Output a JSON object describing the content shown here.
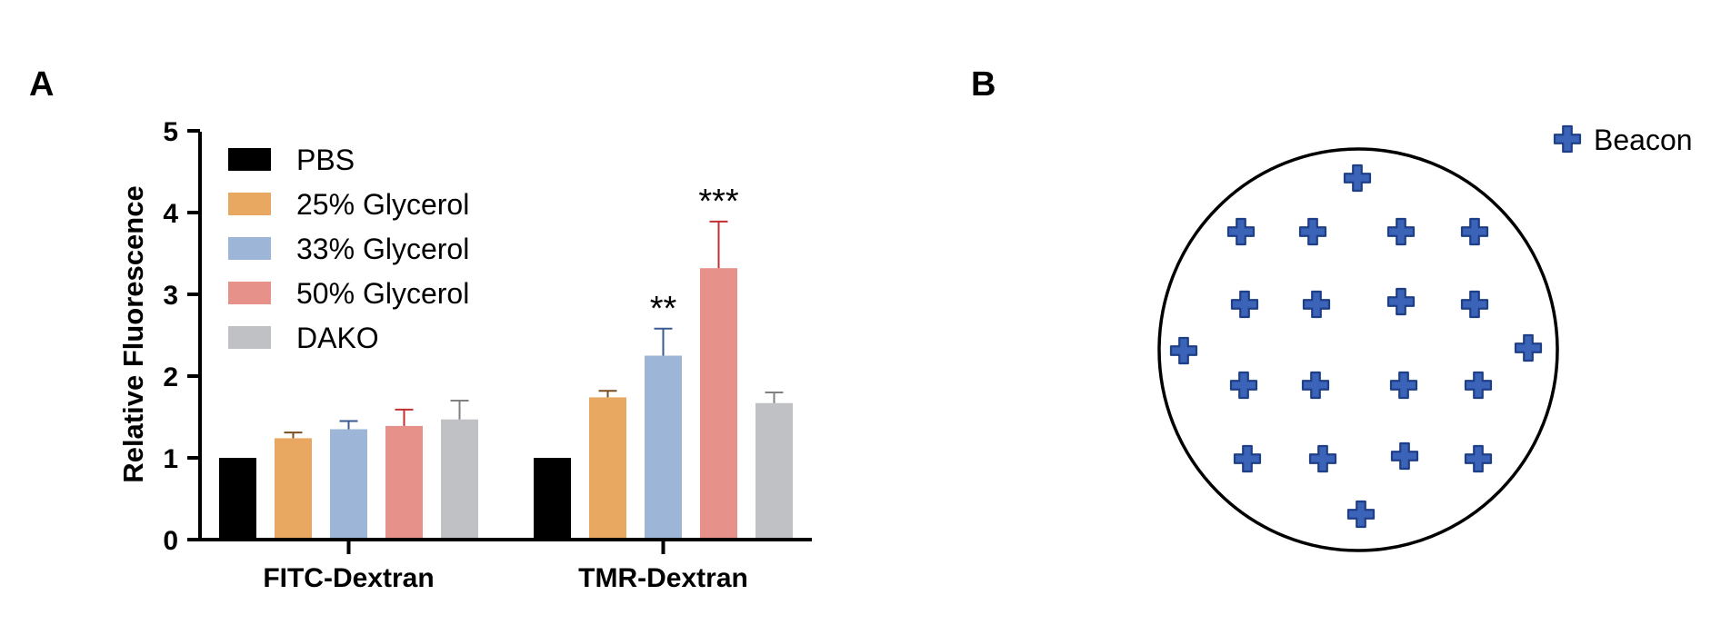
{
  "panels": {
    "a_label": "A",
    "b_label": "B"
  },
  "chart_data": {
    "type": "bar",
    "title": "",
    "xlabel": "",
    "ylabel": "Relative Fluorescence",
    "ylim": [
      0,
      5
    ],
    "yticks": [
      "0",
      "1",
      "2",
      "3",
      "4",
      "5"
    ],
    "categories": [
      "FITC-Dextran",
      "TMR-Dextran"
    ],
    "legend_position": "top-left",
    "series": [
      {
        "name": "PBS",
        "color": "#000000",
        "values": [
          1.0,
          1.0
        ],
        "errors": [
          0,
          0
        ]
      },
      {
        "name": "25% Glycerol",
        "color": "#E8A862",
        "values": [
          1.24,
          1.74
        ],
        "errors": [
          0.07,
          0.08
        ]
      },
      {
        "name": "33% Glycerol",
        "color": "#9DB5D6",
        "values": [
          1.35,
          2.25
        ],
        "errors": [
          0.1,
          0.33
        ]
      },
      {
        "name": "50% Glycerol",
        "color": "#E6928B",
        "values": [
          1.39,
          3.32
        ],
        "errors": [
          0.2,
          0.57
        ]
      },
      {
        "name": "DAKO",
        "color": "#BFC1C4",
        "values": [
          1.47,
          1.67
        ],
        "errors": [
          0.23,
          0.13
        ]
      }
    ],
    "error_colors": [
      "#000000",
      "#7a4f20",
      "#3a5a90",
      "#c03030",
      "#808080"
    ],
    "annotations": [
      {
        "text": "**",
        "category": "TMR-Dextran",
        "series": "33% Glycerol"
      },
      {
        "text": "***",
        "category": "TMR-Dextran",
        "series": "50% Glycerol"
      }
    ]
  },
  "diagram": {
    "legend_label": "Beacon",
    "icon": "plus-icon",
    "icon_color": "#3b63b8",
    "beacon_count": 21
  }
}
